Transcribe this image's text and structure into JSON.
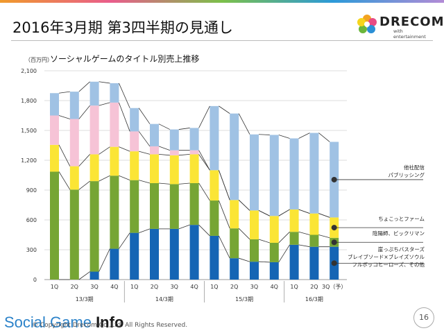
{
  "page": {
    "title": "2016年3月期 第3四半期の見通し",
    "unit_label": "（百万円）",
    "subtitle": "ソーシャルゲームのタイトル別売上推移",
    "logo_name": "DRECOM",
    "logo_sub": "with entertainment",
    "watermark_a": "Social Game ",
    "watermark_b": "Info",
    "copyright": "© Copyright Drecom Co.,Ltd. All Rights Reserved.",
    "page_number": "16"
  },
  "colors": {
    "series_blue": "#1565b4",
    "series_green": "#76a534",
    "series_yellow": "#fbe535",
    "series_pink": "#f6c3d6",
    "series_lightblue": "#a0c2e4",
    "grid": "#dddddd",
    "topbar": [
      "#f09a2b",
      "#e95d8c",
      "#7cc04a",
      "#2c9ad9",
      "#b38bd6"
    ]
  },
  "chart_data": {
    "type": "bar",
    "stacked": true,
    "categories": [
      "1Q",
      "2Q",
      "3Q",
      "4Q",
      "1Q",
      "2Q",
      "3Q",
      "4Q",
      "1Q",
      "2Q",
      "3Q",
      "4Q",
      "1Q",
      "2Q",
      "3Q（予）"
    ],
    "groups": [
      {
        "label": "13/3期",
        "from": 0,
        "to": 3
      },
      {
        "label": "14/3期",
        "from": 4,
        "to": 7
      },
      {
        "label": "15/3期",
        "from": 8,
        "to": 11
      },
      {
        "label": "16/3期",
        "from": 12,
        "to": 14
      }
    ],
    "series": [
      {
        "name": "崖っぷちバスターズ\nブレイブソード×ブレイズソウル\nフルボッコヒーローズ、その他",
        "color": "#1565b4",
        "values": [
          0,
          0,
          80,
          310,
          470,
          510,
          510,
          550,
          440,
          215,
          180,
          175,
          350,
          330,
          330
        ]
      },
      {
        "name": "陰陽師、ビックリマン",
        "color": "#76a534",
        "values": [
          1085,
          905,
          910,
          735,
          530,
          460,
          450,
          420,
          355,
          300,
          225,
          195,
          130,
          120,
          90
        ]
      },
      {
        "name": "ちょこっとファーム",
        "color": "#fbe535",
        "values": [
          270,
          235,
          270,
          290,
          290,
          290,
          290,
          290,
          305,
          285,
          290,
          270,
          225,
          215,
          205
        ]
      },
      {
        "name": "",
        "color": "#f6c3d6",
        "values": [
          295,
          475,
          490,
          445,
          200,
          80,
          50,
          40,
          0,
          0,
          0,
          0,
          0,
          0,
          0
        ]
      },
      {
        "name": "他社配信\nパブリッシング",
        "color": "#a0c2e4",
        "values": [
          225,
          275,
          240,
          195,
          235,
          225,
          210,
          225,
          645,
          870,
          765,
          815,
          715,
          810,
          760
        ]
      }
    ],
    "ylim": [
      0,
      2100
    ],
    "yticks": [
      0,
      300,
      600,
      900,
      1200,
      1500,
      1800,
      2100
    ],
    "ytick_labels": [
      "0",
      "300",
      "600",
      "900",
      "1,200",
      "1,500",
      "1,800",
      "2,100"
    ],
    "legend": "right, callout lines"
  }
}
